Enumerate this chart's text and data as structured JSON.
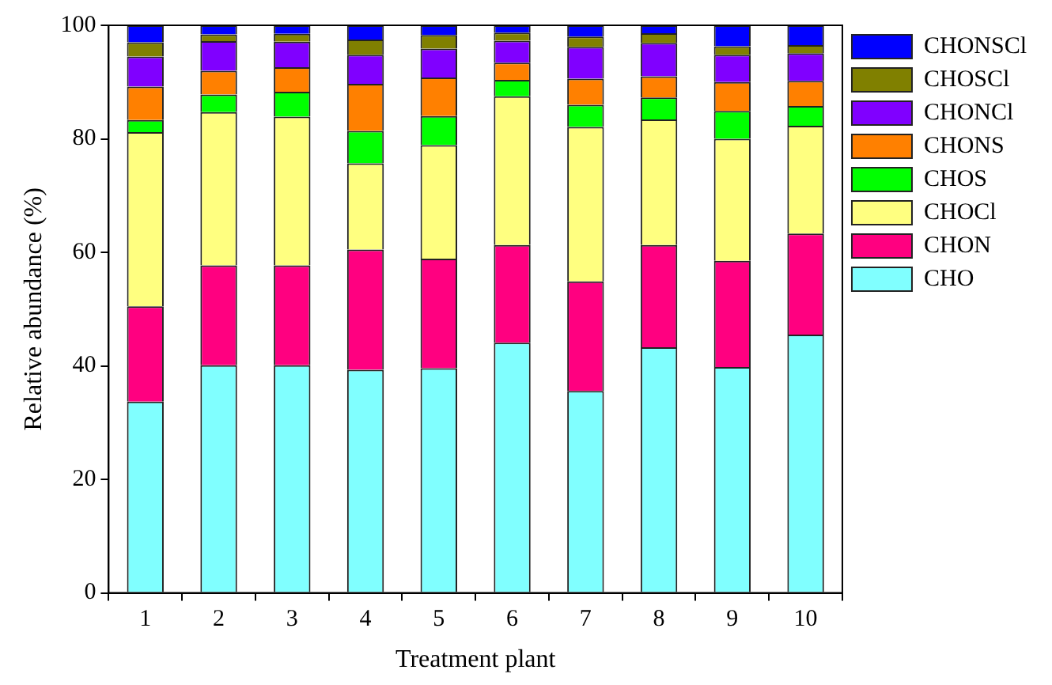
{
  "chart_data": {
    "type": "bar",
    "stacked": true,
    "xlabel": "Treatment plant",
    "ylabel": "Relative abundance (%)",
    "categories": [
      "1",
      "2",
      "3",
      "4",
      "5",
      "6",
      "7",
      "8",
      "9",
      "10"
    ],
    "series": [
      {
        "name": "CHO",
        "color": "#80ffff",
        "values": [
          33.7,
          40.1,
          40.1,
          39.3,
          39.6,
          44.1,
          35.6,
          43.3,
          39.8,
          45.5
        ]
      },
      {
        "name": "CHON",
        "color": "#ff0080",
        "values": [
          16.8,
          17.6,
          17.6,
          21.2,
          19.3,
          17.2,
          19.3,
          18.0,
          18.7,
          17.8
        ]
      },
      {
        "name": "CHOCl",
        "color": "#ffff80",
        "values": [
          30.7,
          27.0,
          26.2,
          15.2,
          20.0,
          26.2,
          27.2,
          22.1,
          21.5,
          19.0
        ]
      },
      {
        "name": "CHOS",
        "color": "#00ff00",
        "values": [
          2.1,
          3.1,
          4.4,
          5.7,
          5.1,
          2.9,
          3.9,
          3.9,
          4.9,
          3.5
        ]
      },
      {
        "name": "CHONS",
        "color": "#ff8000",
        "values": [
          5.9,
          4.2,
          4.3,
          8.3,
          6.8,
          3.0,
          4.6,
          3.7,
          5.1,
          4.4
        ]
      },
      {
        "name": "CHONCl",
        "color": "#8000ff",
        "values": [
          5.3,
          5.2,
          4.5,
          5.1,
          5.1,
          3.9,
          5.6,
          5.9,
          4.8,
          4.9
        ]
      },
      {
        "name": "CHOSCl",
        "color": "#808000",
        "values": [
          2.5,
          1.2,
          1.4,
          2.7,
          2.4,
          1.4,
          1.8,
          1.7,
          1.5,
          1.4
        ]
      },
      {
        "name": "CHONSCl",
        "color": "#0000ff",
        "values": [
          3.0,
          1.6,
          1.5,
          2.5,
          1.7,
          1.3,
          2.0,
          1.4,
          3.7,
          3.5
        ]
      }
    ],
    "ylim": [
      0,
      100
    ],
    "yticks": [
      0,
      20,
      40,
      60,
      80,
      100
    ],
    "grid": false,
    "legend": "right"
  }
}
